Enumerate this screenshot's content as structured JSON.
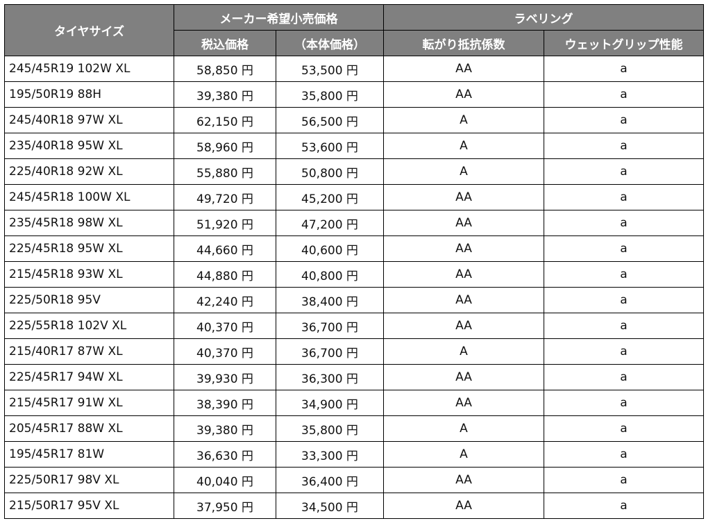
{
  "header": {
    "size": "タイヤサイズ",
    "price_group": "メーカー希望小売価格",
    "price_tax": "税込価格",
    "price_base": "（本体価格）",
    "label_group": "ラベリング",
    "rolling": "転がり抵抗係数",
    "wet": "ウェットグリップ性能"
  },
  "rows": [
    {
      "size": "245/45R19 102W XL",
      "tax": "58,850 円",
      "base": "53,500 円",
      "rolling": "AA",
      "wet": "a"
    },
    {
      "size": "195/50R19 88H",
      "tax": "39,380 円",
      "base": "35,800 円",
      "rolling": "AA",
      "wet": "a"
    },
    {
      "size": "245/40R18 97W XL",
      "tax": "62,150 円",
      "base": "56,500 円",
      "rolling": "A",
      "wet": "a"
    },
    {
      "size": "235/40R18 95W XL",
      "tax": "58,960 円",
      "base": "53,600 円",
      "rolling": "A",
      "wet": "a"
    },
    {
      "size": "225/40R18 92W XL",
      "tax": "55,880 円",
      "base": "50,800 円",
      "rolling": "A",
      "wet": "a"
    },
    {
      "size": "245/45R18 100W XL",
      "tax": "49,720 円",
      "base": "45,200 円",
      "rolling": "AA",
      "wet": "a"
    },
    {
      "size": "235/45R18 98W XL",
      "tax": "51,920 円",
      "base": "47,200 円",
      "rolling": "AA",
      "wet": "a"
    },
    {
      "size": "225/45R18 95W XL",
      "tax": "44,660 円",
      "base": "40,600 円",
      "rolling": "AA",
      "wet": "a"
    },
    {
      "size": "215/45R18 93W XL",
      "tax": "44,880 円",
      "base": "40,800 円",
      "rolling": "AA",
      "wet": "a"
    },
    {
      "size": "225/50R18 95V",
      "tax": "42,240 円",
      "base": "38,400 円",
      "rolling": "AA",
      "wet": "a"
    },
    {
      "size": "225/55R18 102V XL",
      "tax": "40,370 円",
      "base": "36,700 円",
      "rolling": "AA",
      "wet": "a"
    },
    {
      "size": "215/40R17 87W XL",
      "tax": "40,370 円",
      "base": "36,700 円",
      "rolling": "A",
      "wet": "a"
    },
    {
      "size": "225/45R17 94W XL",
      "tax": "39,930 円",
      "base": "36,300 円",
      "rolling": "AA",
      "wet": "a"
    },
    {
      "size": "215/45R17 91W XL",
      "tax": "38,390 円",
      "base": "34,900 円",
      "rolling": "AA",
      "wet": "a"
    },
    {
      "size": "205/45R17 88W XL",
      "tax": "39,380 円",
      "base": "35,800 円",
      "rolling": "A",
      "wet": "a"
    },
    {
      "size": "195/45R17 81W",
      "tax": "36,630 円",
      "base": "33,300 円",
      "rolling": "A",
      "wet": "a"
    },
    {
      "size": "225/50R17 98V XL",
      "tax": "40,040 円",
      "base": "36,400 円",
      "rolling": "AA",
      "wet": "a"
    },
    {
      "size": "215/50R17 95V XL",
      "tax": "37,950 円",
      "base": "34,500 円",
      "rolling": "AA",
      "wet": "a"
    }
  ]
}
